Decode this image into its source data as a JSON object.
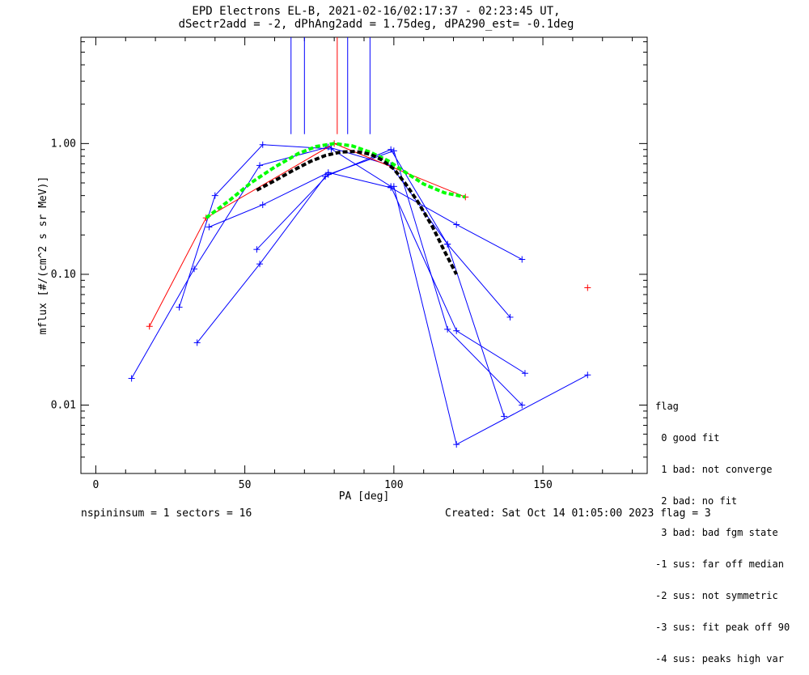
{
  "title_line1": "EPD Electrons EL-B, 2021-02-16/02:17:37 - 02:23:45 UT,",
  "title_line2": "dSectr2add = -2, dPhAng2add = 1.75deg, dPA290_est=  -0.1deg",
  "footer": {
    "left": "nspininsum =  1  sectors = 16",
    "right": "Created: Sat Oct 14 01:05:00 2023   flag = 3"
  },
  "flag_legend": {
    "title": "flag",
    "items": [
      " 0 good fit",
      " 1 bad: not converge",
      " 2 bad: no fit",
      " 3 bad: bad fgm state",
      "-1 sus: far off median",
      "-2 sus: not symmetric",
      "-3 sus: fit peak off 90",
      "-4 sus: peaks high var"
    ]
  },
  "colors": {
    "blue": "#0000ff",
    "red": "#ff0000",
    "green": "#00ff00",
    "black": "#000000"
  },
  "chart_data": {
    "type": "line",
    "xlabel": "PA [deg]",
    "ylabel": "mflux [#/(cm^2 s sr MeV)]",
    "xlim": [
      -5,
      185
    ],
    "ylim": [
      0.003,
      6.5
    ],
    "ylog": true,
    "xticks": [
      0,
      50,
      100,
      150
    ],
    "xtick_labels": [
      "0",
      "50",
      "100",
      "150"
    ],
    "yticks": [
      0.01,
      0.1,
      1.0
    ],
    "ytick_labels": [
      "0.01",
      "0.10",
      "1.00"
    ],
    "blue_series": [
      {
        "x": [
          12,
          33,
          55,
          78,
          99,
          118,
          137
        ],
        "y": [
          0.016,
          0.11,
          0.68,
          0.94,
          0.68,
          0.17,
          0.0082
        ]
      },
      {
        "x": [
          28,
          40,
          56,
          79,
          99,
          121,
          144
        ],
        "y": [
          0.056,
          0.4,
          0.98,
          0.91,
          0.47,
          0.037,
          0.0175
        ]
      },
      {
        "x": [
          34,
          55,
          77,
          99,
          118,
          139
        ],
        "y": [
          0.03,
          0.12,
          0.56,
          0.9,
          0.17,
          0.047
        ]
      },
      {
        "x": [
          38,
          56,
          78,
          99,
          121,
          143
        ],
        "y": [
          0.23,
          0.34,
          0.6,
          0.46,
          0.24,
          0.13
        ]
      },
      {
        "x": [
          54,
          78,
          100,
          118,
          143
        ],
        "y": [
          0.155,
          0.58,
          0.88,
          0.038,
          0.01
        ]
      },
      {
        "x": [
          100,
          121,
          165
        ],
        "y": [
          0.47,
          0.005,
          0.017
        ]
      }
    ],
    "red_series": {
      "x": [
        18,
        37,
        80,
        124
      ],
      "y": [
        0.04,
        0.27,
        1.0,
        0.39
      ]
    },
    "red_points": {
      "x": [
        165
      ],
      "y": [
        0.079
      ]
    },
    "green_fit": {
      "x": [
        37,
        45,
        52,
        60,
        68,
        74,
        80,
        86,
        92,
        98,
        104,
        110,
        117,
        124
      ],
      "y": [
        0.27,
        0.37,
        0.5,
        0.66,
        0.84,
        0.95,
        1.0,
        0.96,
        0.86,
        0.74,
        0.6,
        0.49,
        0.42,
        0.39
      ]
    },
    "black_fit": {
      "x": [
        54,
        60,
        66,
        72,
        77,
        82,
        87,
        92,
        96,
        100,
        104,
        108,
        113,
        117,
        121
      ],
      "y": [
        0.44,
        0.52,
        0.62,
        0.73,
        0.81,
        0.86,
        0.87,
        0.83,
        0.75,
        0.64,
        0.49,
        0.36,
        0.23,
        0.15,
        0.1
      ]
    },
    "vertical_markers": [
      {
        "x": 65.5,
        "color": "#0000ff"
      },
      {
        "x": 70,
        "color": "#0000ff"
      },
      {
        "x": 81,
        "color": "#ff0000"
      },
      {
        "x": 84.5,
        "color": "#0000ff"
      },
      {
        "x": 92,
        "color": "#0000ff"
      }
    ],
    "marker_ybottom": 1.18
  }
}
